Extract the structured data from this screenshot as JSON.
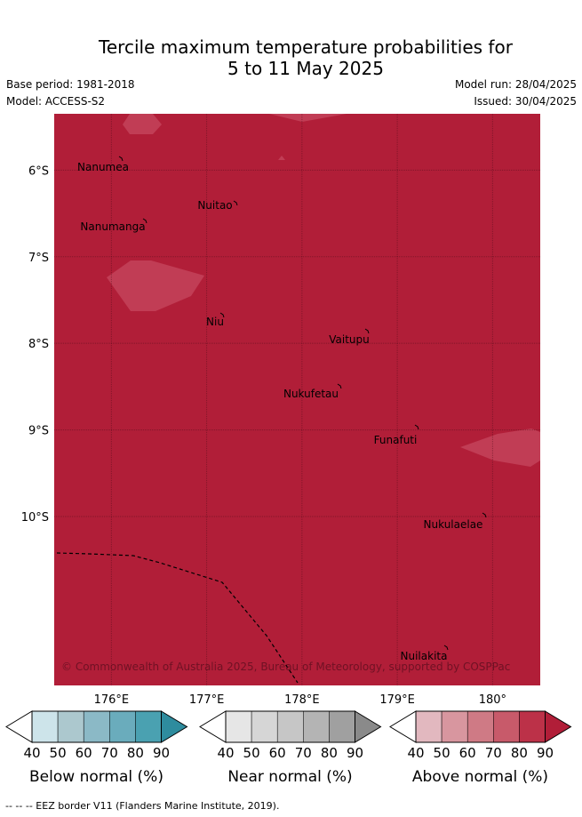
{
  "title_line1": "Tercile maximum temperature probabilities for",
  "title_line2": "5 to 11 May 2025",
  "base_period": "Base period: 1981-2018",
  "model": "Model: ACCESS-S2",
  "model_run": "Model run: 28/04/2025",
  "issued": "Issued: 30/04/2025",
  "map": {
    "lon_range": [
      175.4,
      180.5
    ],
    "lat_range": [
      -11.95,
      -5.35
    ],
    "lat_ticks": [
      {
        "value": -6,
        "label": "6°S"
      },
      {
        "value": -7,
        "label": "7°S"
      },
      {
        "value": -8,
        "label": "8°S"
      },
      {
        "value": -9,
        "label": "9°S"
      },
      {
        "value": -10,
        "label": "10°S"
      }
    ],
    "lon_ticks": [
      {
        "value": 176,
        "label": "176°E"
      },
      {
        "value": 177,
        "label": "177°E"
      },
      {
        "value": 178,
        "label": "178°E"
      },
      {
        "value": 179,
        "label": "179°E"
      },
      {
        "value": 180,
        "label": "180°"
      }
    ],
    "background_color": "#b11e38",
    "lighter_color": "#c13d55",
    "copyright": "© Commonwealth of Australia 2025, Bureau of Meteorology, supported by COSPPac",
    "places": [
      {
        "name": "Nanumea",
        "lon": 175.7,
        "lat": -5.7
      },
      {
        "name": "Nuitao",
        "lon": 177.1,
        "lat": -6.1
      },
      {
        "name": "Nanumanga",
        "lon": 175.7,
        "lat": -6.3
      },
      {
        "name": "Niu",
        "lon": 177.1,
        "lat": -7.3
      },
      {
        "name": "Vaitupu",
        "lon": 178.5,
        "lat": -7.5
      },
      {
        "name": "Nukufetau",
        "lon": 178.1,
        "lat": -8.1
      },
      {
        "name": "Funafuti",
        "lon": 179.1,
        "lat": -8.6
      },
      {
        "name": "Nukulaelae",
        "lon": 179.4,
        "lat": -9.4
      },
      {
        "name": "Nuilakita",
        "lon": 179.3,
        "lat": -10.8
      }
    ]
  },
  "colorbars": [
    {
      "caption": "Below normal (%)",
      "ticks": [
        "40",
        "50",
        "60",
        "70",
        "80",
        "90"
      ],
      "colors": [
        "#cde4ea",
        "#acc8ce",
        "#8bb9c6",
        "#6aacbc",
        "#4aa1b1",
        "#2e8c9e"
      ]
    },
    {
      "caption": "Near normal (%)",
      "ticks": [
        "40",
        "50",
        "60",
        "70",
        "80",
        "90"
      ],
      "colors": [
        "#e6e6e6",
        "#d6d6d6",
        "#c6c6c6",
        "#b4b4b4",
        "#a0a0a0",
        "#8a8a8a"
      ]
    },
    {
      "caption": "Above normal (%)",
      "ticks": [
        "40",
        "50",
        "60",
        "70",
        "80",
        "90"
      ],
      "colors": [
        "#e2b8bf",
        "#d8969f",
        "#cf7a85",
        "#c85a6a",
        "#bc3148",
        "#b11e38"
      ]
    }
  ],
  "footer": "--  --  -- EEZ border V11 (Flanders Marine Institute, 2019)."
}
